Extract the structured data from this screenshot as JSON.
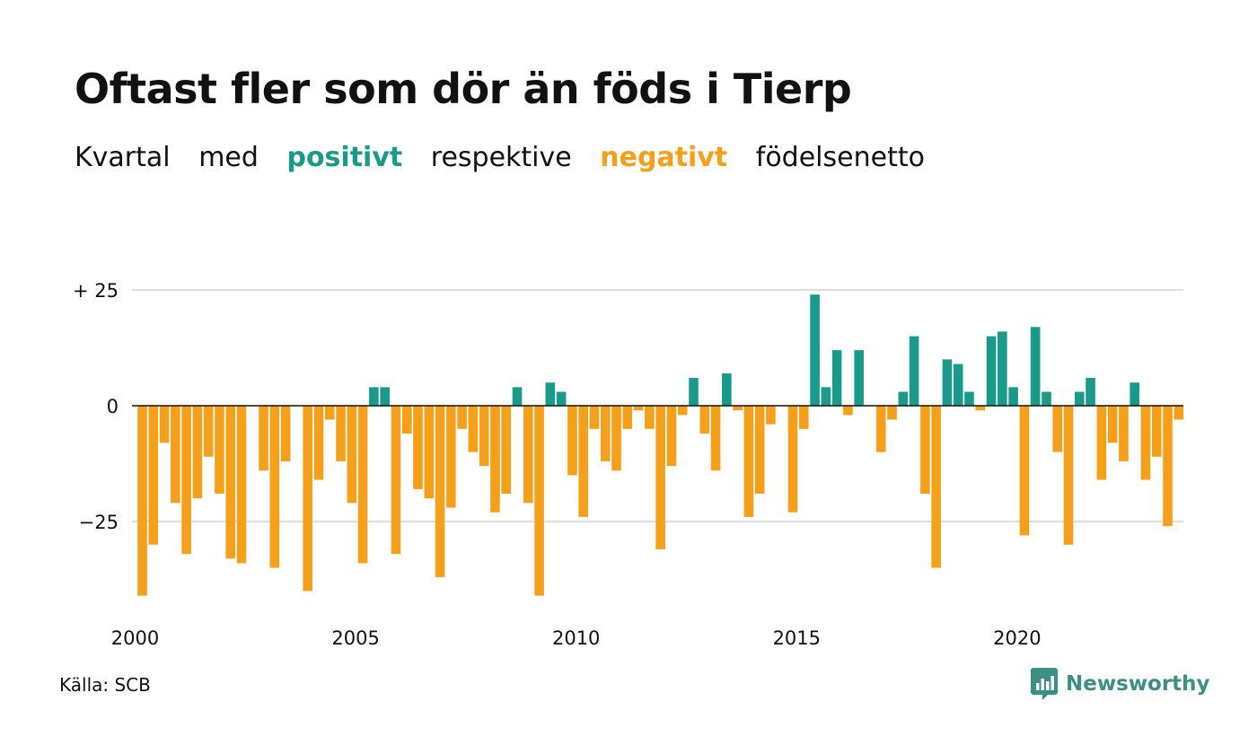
{
  "title": "Oftast fler som dör än föds i Tierp",
  "subtitle": {
    "w1": "Kvartal",
    "w2": "med",
    "positive": "positivt",
    "w3": "respektive",
    "negative": "negativt",
    "w4": "födelsenetto"
  },
  "source": "Källa: SCB",
  "logo_text": "Newsworthy",
  "colors": {
    "positive": "#1a9a8a",
    "negative": "#f5a01a",
    "grid": "#dddddd",
    "logo": "#3b8f85"
  },
  "chart_data": {
    "type": "bar",
    "x_start": "2000 Q1",
    "ylim": [
      -42,
      27
    ],
    "y_ticks": [
      {
        "value": 25,
        "label": "+ 25"
      },
      {
        "value": 0,
        "label": "0"
      },
      {
        "value": -25,
        "label": "−25"
      }
    ],
    "x_ticks": [
      {
        "index": 0,
        "label": "2000"
      },
      {
        "index": 20,
        "label": "2005"
      },
      {
        "index": 40,
        "label": "2010"
      },
      {
        "index": 60,
        "label": "2015"
      },
      {
        "index": 80,
        "label": "2020"
      }
    ],
    "values": [
      -41,
      -30,
      -8,
      -21,
      -32,
      -20,
      -11,
      -19,
      -33,
      -34,
      0,
      -14,
      -35,
      -12,
      0,
      -40,
      -16,
      -3,
      -12,
      -21,
      -34,
      4,
      4,
      -32,
      -6,
      -18,
      -20,
      -37,
      -22,
      -5,
      -10,
      -13,
      -23,
      -19,
      4,
      -21,
      -41,
      5,
      3,
      -15,
      -24,
      -5,
      -12,
      -14,
      -5,
      -1,
      -5,
      -31,
      -13,
      -2,
      6,
      -6,
      -14,
      7,
      -1,
      -24,
      -19,
      -4,
      0,
      -23,
      -5,
      24,
      4,
      12,
      -2,
      12,
      0,
      -10,
      -3,
      3,
      15,
      -19,
      -35,
      10,
      9,
      3,
      -1,
      15,
      16,
      4,
      -28,
      17,
      3,
      -10,
      -30,
      3,
      6,
      -16,
      -8,
      -12,
      5,
      -16,
      -11,
      -26,
      -3
    ]
  }
}
